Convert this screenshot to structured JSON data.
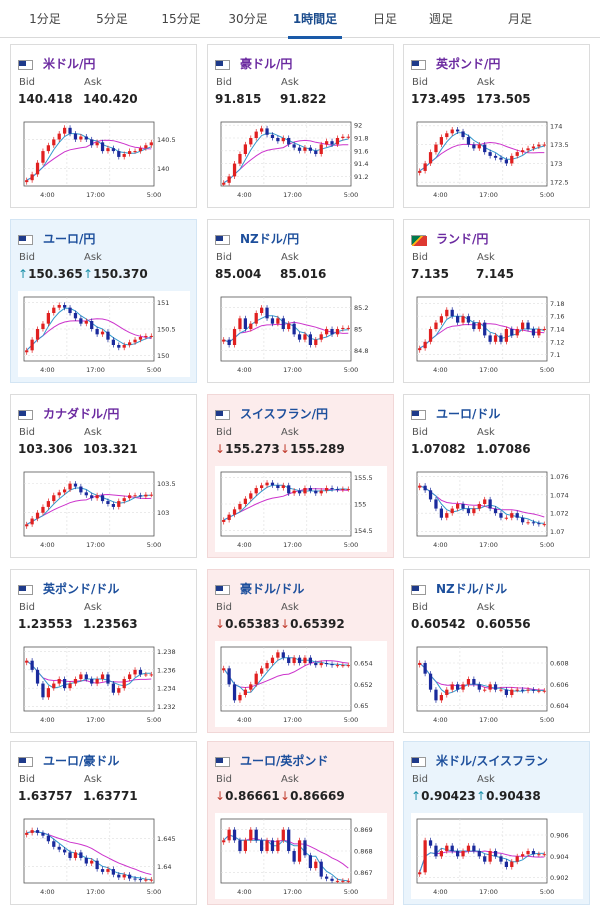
{
  "tabs": [
    {
      "label": "1分足",
      "active": false
    },
    {
      "label": "5分足",
      "active": false
    },
    {
      "label": "15分足",
      "active": false
    },
    {
      "label": "30分足",
      "active": false
    },
    {
      "label": "1時間足",
      "active": true
    },
    {
      "label": "日足",
      "active": false
    },
    {
      "label": "週足",
      "active": false
    },
    {
      "label": "月足",
      "active": false
    }
  ],
  "labels": {
    "bid": "Bid",
    "ask": "Ask"
  },
  "colors": {
    "up_candle": "#e02020",
    "down_candle": "#1a2a9c",
    "ma_short": "#3399cc",
    "ma_long": "#cc33cc",
    "up_arrow": "#1a8fa8",
    "down_arrow": "#c0392b"
  },
  "cards": [
    {
      "pair": "米ドル/円",
      "flag_icon": "us-flag-icon",
      "bid": "140.418",
      "ask": "140.420",
      "trend": "none",
      "chart_data": {
        "type": "candlestick",
        "x_ticks": [
          "4:00",
          "17:00",
          "5:00"
        ],
        "y_ticks": [
          140,
          140.5
        ],
        "y_range": [
          139.7,
          140.8
        ],
        "closes": [
          139.8,
          139.9,
          140.1,
          140.3,
          140.4,
          140.5,
          140.6,
          140.7,
          140.6,
          140.5,
          140.55,
          140.5,
          140.4,
          140.45,
          140.3,
          140.35,
          140.3,
          140.2,
          140.25,
          140.3,
          140.3,
          140.35,
          140.4,
          140.45
        ]
      }
    },
    {
      "pair": "豪ドル/円",
      "flag_icon": "au-flag-icon",
      "bid": "91.815",
      "ask": "91.822",
      "trend": "none",
      "chart_data": {
        "type": "candlestick",
        "x_ticks": [
          "4:00",
          "17:00",
          "5:00"
        ],
        "y_ticks": [
          91.2,
          91.4,
          91.6,
          91.8,
          92
        ],
        "y_range": [
          91.05,
          92.05
        ],
        "closes": [
          91.1,
          91.2,
          91.4,
          91.55,
          91.7,
          91.8,
          91.9,
          91.95,
          91.85,
          91.8,
          91.75,
          91.8,
          91.7,
          91.65,
          91.6,
          91.65,
          91.6,
          91.55,
          91.7,
          91.75,
          91.7,
          91.8,
          91.82,
          91.82
        ]
      }
    },
    {
      "pair": "英ポンド/円",
      "flag_icon": "gb-flag-icon",
      "bid": "173.495",
      "ask": "173.505",
      "trend": "none",
      "chart_data": {
        "type": "candlestick",
        "x_ticks": [
          "4:00",
          "17:00",
          "5:00"
        ],
        "y_ticks": [
          172.5,
          173,
          173.5,
          174
        ],
        "y_range": [
          172.4,
          174.1
        ],
        "closes": [
          172.8,
          173.0,
          173.3,
          173.5,
          173.7,
          173.8,
          173.9,
          173.85,
          173.7,
          173.5,
          173.4,
          173.5,
          173.3,
          173.2,
          173.15,
          173.1,
          173.0,
          173.2,
          173.3,
          173.35,
          173.4,
          173.45,
          173.5,
          173.5
        ]
      }
    },
    {
      "pair": "ユーロ/円",
      "flag_icon": "eu-flag-icon",
      "bid": "150.365",
      "ask": "150.370",
      "trend": "up",
      "chart_data": {
        "type": "candlestick",
        "x_ticks": [
          "4:00",
          "17:00",
          "5:00"
        ],
        "y_ticks": [
          150,
          150.5,
          151
        ],
        "y_range": [
          149.9,
          151.1
        ],
        "closes": [
          150.1,
          150.3,
          150.5,
          150.6,
          150.8,
          150.9,
          150.95,
          150.9,
          150.8,
          150.7,
          150.6,
          150.65,
          150.5,
          150.4,
          150.45,
          150.3,
          150.2,
          150.15,
          150.2,
          150.25,
          150.3,
          150.35,
          150.37,
          150.37
        ]
      }
    },
    {
      "pair": "NZドル/円",
      "flag_icon": "nz-flag-icon",
      "bid": "85.004",
      "ask": "85.016",
      "trend": "none",
      "chart_data": {
        "type": "candlestick",
        "x_ticks": [
          "4:00",
          "17:00",
          "5:00"
        ],
        "y_ticks": [
          84.8,
          85,
          85.2
        ],
        "y_range": [
          84.7,
          85.3
        ],
        "closes": [
          84.9,
          84.85,
          85.0,
          85.1,
          85.0,
          85.05,
          85.15,
          85.2,
          85.1,
          85.05,
          85.1,
          85.0,
          85.05,
          84.95,
          84.9,
          84.95,
          84.85,
          84.9,
          84.95,
          85.0,
          84.95,
          85.0,
          85.01,
          85.01
        ]
      }
    },
    {
      "pair": "ランド/円",
      "flag_icon": "za-flag-icon",
      "bid": "7.135",
      "ask": "7.145",
      "trend": "none",
      "chart_data": {
        "type": "candlestick",
        "x_ticks": [
          "4:00",
          "17:00",
          "5:00"
        ],
        "y_ticks": [
          7.1,
          7.12,
          7.14,
          7.16,
          7.18
        ],
        "y_range": [
          7.09,
          7.19
        ],
        "closes": [
          7.11,
          7.12,
          7.14,
          7.15,
          7.16,
          7.17,
          7.16,
          7.15,
          7.16,
          7.15,
          7.14,
          7.15,
          7.13,
          7.12,
          7.13,
          7.12,
          7.14,
          7.13,
          7.14,
          7.15,
          7.14,
          7.13,
          7.14,
          7.14
        ]
      }
    },
    {
      "pair": "カナダドル/円",
      "flag_icon": "ca-flag-icon",
      "bid": "103.306",
      "ask": "103.321",
      "trend": "none",
      "chart_data": {
        "type": "candlestick",
        "x_ticks": [
          "4:00",
          "17:00",
          "5:00"
        ],
        "y_ticks": [
          103,
          103.5
        ],
        "y_range": [
          102.6,
          103.7
        ],
        "closes": [
          102.8,
          102.9,
          103.0,
          103.1,
          103.2,
          103.3,
          103.35,
          103.4,
          103.5,
          103.45,
          103.35,
          103.3,
          103.25,
          103.3,
          103.2,
          103.15,
          103.1,
          103.2,
          103.25,
          103.3,
          103.3,
          103.28,
          103.31,
          103.31
        ]
      }
    },
    {
      "pair": "スイスフラン/円",
      "flag_icon": "ch-flag-icon",
      "bid": "155.273",
      "ask": "155.289",
      "trend": "down",
      "chart_data": {
        "type": "candlestick",
        "x_ticks": [
          "4:00",
          "17:00",
          "5:00"
        ],
        "y_ticks": [
          154.5,
          155,
          155.5
        ],
        "y_range": [
          154.4,
          155.6
        ],
        "closes": [
          154.7,
          154.8,
          154.9,
          155.0,
          155.1,
          155.2,
          155.3,
          155.35,
          155.4,
          155.35,
          155.3,
          155.35,
          155.2,
          155.25,
          155.2,
          155.3,
          155.25,
          155.2,
          155.25,
          155.3,
          155.28,
          155.27,
          155.28,
          155.28
        ]
      }
    },
    {
      "pair": "ユーロ/ドル",
      "flag_icon": "eu-flag-icon",
      "bid": "1.07082",
      "ask": "1.07086",
      "trend": "none",
      "chart_data": {
        "type": "candlestick",
        "x_ticks": [
          "4:00",
          "17:00",
          "5:00"
        ],
        "y_ticks": [
          1.07,
          1.072,
          1.074,
          1.076
        ],
        "y_range": [
          1.0695,
          1.0765
        ],
        "closes": [
          1.075,
          1.0745,
          1.0735,
          1.0725,
          1.0715,
          1.072,
          1.0725,
          1.073,
          1.0725,
          1.072,
          1.0725,
          1.073,
          1.0735,
          1.0725,
          1.072,
          1.0715,
          1.0715,
          1.072,
          1.0715,
          1.071,
          1.071,
          1.0709,
          1.0708,
          1.0708
        ]
      }
    },
    {
      "pair": "英ポンド/ドル",
      "flag_icon": "gb-flag-icon",
      "bid": "1.23553",
      "ask": "1.23563",
      "trend": "none",
      "chart_data": {
        "type": "candlestick",
        "x_ticks": [
          "4:00",
          "17:00",
          "5:00"
        ],
        "y_ticks": [
          1.232,
          1.234,
          1.236,
          1.238
        ],
        "y_range": [
          1.2315,
          1.2385
        ],
        "closes": [
          1.237,
          1.236,
          1.2345,
          1.233,
          1.234,
          1.2345,
          1.235,
          1.234,
          1.2345,
          1.235,
          1.2355,
          1.235,
          1.2345,
          1.235,
          1.2355,
          1.2345,
          1.2335,
          1.234,
          1.235,
          1.2355,
          1.236,
          1.2355,
          1.2355,
          1.2355
        ]
      }
    },
    {
      "pair": "豪ドル/ドル",
      "flag_icon": "au-flag-icon",
      "bid": "0.65383",
      "ask": "0.65392",
      "trend": "down",
      "chart_data": {
        "type": "candlestick",
        "x_ticks": [
          "4:00",
          "17:00",
          "5:00"
        ],
        "y_ticks": [
          0.65,
          0.652,
          0.654
        ],
        "y_range": [
          0.6495,
          0.6555
        ],
        "closes": [
          0.6535,
          0.652,
          0.6505,
          0.651,
          0.6515,
          0.652,
          0.653,
          0.6535,
          0.654,
          0.6545,
          0.655,
          0.6545,
          0.654,
          0.6545,
          0.654,
          0.6545,
          0.654,
          0.6538,
          0.654,
          0.6539,
          0.6538,
          0.6538,
          0.6538,
          0.6538
        ]
      }
    },
    {
      "pair": "NZドル/ドル",
      "flag_icon": "nz-flag-icon",
      "bid": "0.60542",
      "ask": "0.60556",
      "trend": "none",
      "chart_data": {
        "type": "candlestick",
        "x_ticks": [
          "4:00",
          "17:00",
          "5:00"
        ],
        "y_ticks": [
          0.604,
          0.606,
          0.608
        ],
        "y_range": [
          0.6035,
          0.6095
        ],
        "closes": [
          0.608,
          0.607,
          0.6055,
          0.6045,
          0.605,
          0.6055,
          0.606,
          0.6055,
          0.606,
          0.6065,
          0.606,
          0.6055,
          0.6055,
          0.606,
          0.6055,
          0.6055,
          0.605,
          0.6055,
          0.6055,
          0.6054,
          0.6055,
          0.6054,
          0.6054,
          0.6054
        ]
      }
    },
    {
      "pair": "ユーロ/豪ドル",
      "flag_icon": "eu-flag-icon",
      "bid": "1.63757",
      "ask": "1.63771",
      "trend": "none",
      "chart_data": {
        "type": "candlestick",
        "x_ticks": [
          "4:00",
          "17:00",
          "5:00"
        ],
        "y_ticks": [
          1.64,
          1.645
        ],
        "y_range": [
          1.637,
          1.6485
        ],
        "closes": [
          1.646,
          1.6465,
          1.646,
          1.6455,
          1.6445,
          1.6435,
          1.643,
          1.6425,
          1.6415,
          1.6425,
          1.6415,
          1.6405,
          1.641,
          1.6395,
          1.639,
          1.6395,
          1.6385,
          1.638,
          1.6385,
          1.6378,
          1.6377,
          1.6376,
          1.6376,
          1.6376
        ]
      }
    },
    {
      "pair": "ユーロ/英ポンド",
      "flag_icon": "eu-flag-icon",
      "bid": "0.86661",
      "ask": "0.86669",
      "trend": "down",
      "chart_data": {
        "type": "candlestick",
        "x_ticks": [
          "4:00",
          "17:00",
          "5:00"
        ],
        "y_ticks": [
          0.867,
          0.868,
          0.869
        ],
        "y_range": [
          0.8665,
          0.8695
        ],
        "closes": [
          0.8685,
          0.869,
          0.8685,
          0.868,
          0.8685,
          0.869,
          0.8685,
          0.868,
          0.8685,
          0.868,
          0.8685,
          0.869,
          0.868,
          0.8675,
          0.8685,
          0.8678,
          0.8672,
          0.8675,
          0.8668,
          0.8667,
          0.8666,
          0.8666,
          0.8666,
          0.8666
        ]
      }
    },
    {
      "pair": "米ドル/スイスフラン",
      "flag_icon": "us-flag-icon",
      "bid": "0.90423",
      "ask": "0.90438",
      "trend": "up",
      "chart_data": {
        "type": "candlestick",
        "x_ticks": [
          "4:00",
          "17:00",
          "5:00"
        ],
        "y_ticks": [
          0.902,
          0.904,
          0.906
        ],
        "y_range": [
          0.9015,
          0.9075
        ],
        "closes": [
          0.9025,
          0.9055,
          0.905,
          0.904,
          0.9045,
          0.905,
          0.9045,
          0.904,
          0.9045,
          0.905,
          0.9045,
          0.904,
          0.9035,
          0.9045,
          0.904,
          0.9035,
          0.903,
          0.9035,
          0.904,
          0.9042,
          0.9045,
          0.9042,
          0.9042,
          0.9042
        ]
      }
    }
  ]
}
